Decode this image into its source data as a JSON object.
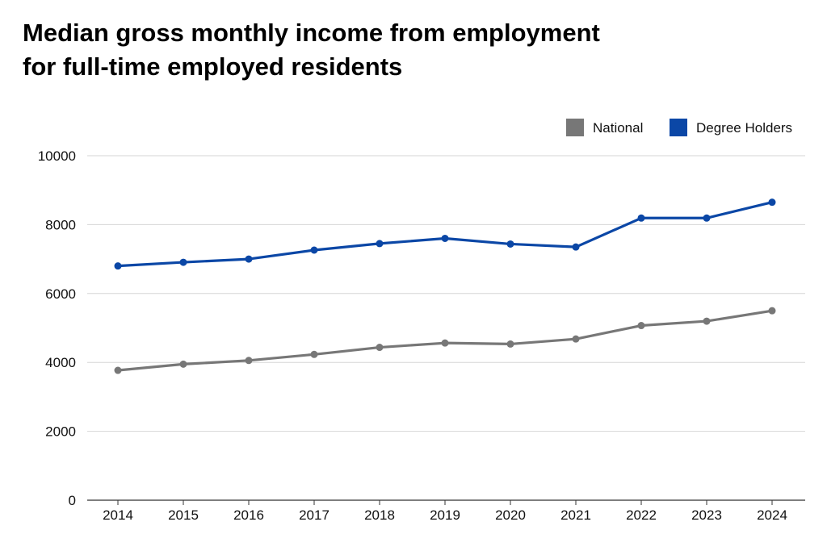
{
  "title_lines": [
    "Median gross monthly income from employment",
    "for full-time employed residents"
  ],
  "chart_data": {
    "type": "line",
    "title": "Median gross monthly income from employment for full-time employed residents",
    "x": [
      "2014",
      "2015",
      "2016",
      "2017",
      "2018",
      "2019",
      "2020",
      "2021",
      "2022",
      "2023",
      "2024"
    ],
    "series": [
      {
        "name": "National",
        "color": "#777777",
        "values": [
          3770,
          3949,
          4056,
          4232,
          4437,
          4563,
          4534,
          4680,
          5070,
          5197,
          5500
        ]
      },
      {
        "name": "Degree Holders",
        "color": "#0B47A6",
        "values": [
          6800,
          6907,
          7000,
          7260,
          7450,
          7600,
          7437,
          7350,
          8190,
          8190,
          8650
        ]
      }
    ],
    "yticks": [
      0,
      2000,
      4000,
      6000,
      8000,
      10000
    ],
    "ylim": [
      0,
      10000
    ],
    "xlabel": "",
    "ylabel": "",
    "grid": true,
    "legend_position": "top-right"
  }
}
